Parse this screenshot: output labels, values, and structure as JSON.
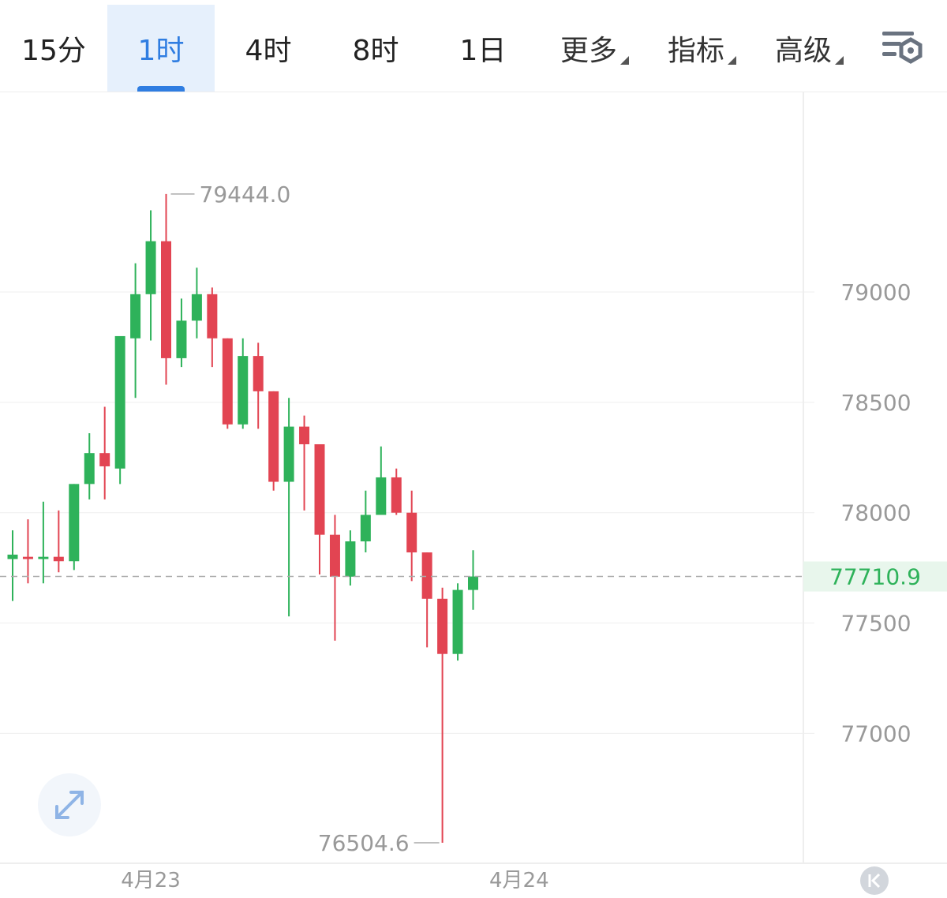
{
  "toolbar": {
    "tabs": [
      {
        "label": "15分",
        "active": false
      },
      {
        "label": "1时",
        "active": true
      },
      {
        "label": "4时",
        "active": false
      },
      {
        "label": "8时",
        "active": false
      },
      {
        "label": "1日",
        "active": false
      }
    ],
    "menus": [
      {
        "label": "更多"
      },
      {
        "label": "指标"
      },
      {
        "label": "高级"
      }
    ],
    "settings_icon": "chart-settings-icon"
  },
  "colors": {
    "up": "#2eb25a",
    "down": "#e24452",
    "last_price": "#2eb25a",
    "accent": "#2f7de1"
  },
  "chart_data": {
    "type": "candlestick",
    "interval": "1时",
    "y_ticks": [
      79000,
      78500,
      78000,
      77500,
      77000
    ],
    "x_ticks": [
      {
        "label": "4月23",
        "index": 9
      },
      {
        "label": "4月24",
        "index": 33
      }
    ],
    "high_label": "79444.0",
    "low_label": "76504.6",
    "last_price": 77710.9,
    "last_price_label": "77710.9",
    "grid": true,
    "candles": [
      {
        "o": 77790,
        "h": 77920,
        "l": 77600,
        "c": 77810
      },
      {
        "o": 77800,
        "h": 77970,
        "l": 77680,
        "c": 77790
      },
      {
        "o": 77790,
        "h": 78050,
        "l": 77680,
        "c": 77800
      },
      {
        "o": 77800,
        "h": 78010,
        "l": 77730,
        "c": 77780
      },
      {
        "o": 77780,
        "h": 78130,
        "l": 77740,
        "c": 78130
      },
      {
        "o": 78130,
        "h": 78360,
        "l": 78060,
        "c": 78270
      },
      {
        "o": 78270,
        "h": 78480,
        "l": 78060,
        "c": 78210
      },
      {
        "o": 78200,
        "h": 78800,
        "l": 78130,
        "c": 78800
      },
      {
        "o": 78790,
        "h": 79130,
        "l": 78520,
        "c": 78990
      },
      {
        "o": 78990,
        "h": 79370,
        "l": 78780,
        "c": 79230
      },
      {
        "o": 79230,
        "h": 79444,
        "l": 78580,
        "c": 78700
      },
      {
        "o": 78700,
        "h": 78970,
        "l": 78660,
        "c": 78870
      },
      {
        "o": 78870,
        "h": 79110,
        "l": 78790,
        "c": 78990
      },
      {
        "o": 78990,
        "h": 79020,
        "l": 78660,
        "c": 78790
      },
      {
        "o": 78790,
        "h": 78790,
        "l": 78380,
        "c": 78400
      },
      {
        "o": 78400,
        "h": 78790,
        "l": 78380,
        "c": 78710
      },
      {
        "o": 78710,
        "h": 78770,
        "l": 78380,
        "c": 78550
      },
      {
        "o": 78550,
        "h": 78550,
        "l": 78100,
        "c": 78140
      },
      {
        "o": 78140,
        "h": 78520,
        "l": 77530,
        "c": 78390
      },
      {
        "o": 78390,
        "h": 78440,
        "l": 78010,
        "c": 78310
      },
      {
        "o": 78310,
        "h": 78310,
        "l": 77720,
        "c": 77900
      },
      {
        "o": 77900,
        "h": 77990,
        "l": 77420,
        "c": 77710
      },
      {
        "o": 77710,
        "h": 77920,
        "l": 77670,
        "c": 77870
      },
      {
        "o": 77870,
        "h": 78100,
        "l": 77820,
        "c": 77990
      },
      {
        "o": 77990,
        "h": 78300,
        "l": 77990,
        "c": 78160
      },
      {
        "o": 78160,
        "h": 78200,
        "l": 77990,
        "c": 78000
      },
      {
        "o": 78000,
        "h": 78100,
        "l": 77690,
        "c": 77820
      },
      {
        "o": 77820,
        "h": 77820,
        "l": 77390,
        "c": 77610
      },
      {
        "o": 77610,
        "h": 77660,
        "l": 76504.6,
        "c": 77360
      },
      {
        "o": 77360,
        "h": 77680,
        "l": 77330,
        "c": 77650
      },
      {
        "o": 77650,
        "h": 77830,
        "l": 77560,
        "c": 77710.9
      }
    ]
  }
}
